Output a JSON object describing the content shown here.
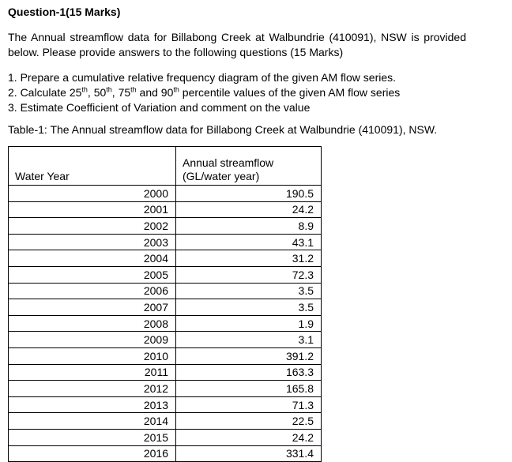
{
  "page": {
    "title": "Question-1(15 Marks)"
  },
  "intro": {
    "line1": "The Annual streamflow data for Billabong Creek at Walbundrie (410091), NSW is provided",
    "line2": "below. Please provide answers to the following questions (15 Marks)"
  },
  "questions": {
    "q1": "1. Prepare a cumulative relative frequency diagram of the given AM flow series.",
    "q2": {
      "a": "2. Calculate 25",
      "sup1": "th",
      "b": ", 50",
      "sup2": "th",
      "c": ", 75",
      "sup3": "th",
      "d": " and 90",
      "sup4": "th",
      "e": " percentile values of the given AM flow series"
    },
    "q3": "3. Estimate Coefficient of Variation and comment on the value"
  },
  "table": {
    "caption": "Table-1: The Annual streamflow data for Billabong Creek at Walbundrie (410091), NSW.",
    "headers": {
      "col1": "Water Year",
      "col2_line1": "Annual streamflow",
      "col2_line2": "(GL/water year)"
    },
    "rows": [
      {
        "year": "2000",
        "value": "190.5"
      },
      {
        "year": "2001",
        "value": "24.2"
      },
      {
        "year": "2002",
        "value": "8.9"
      },
      {
        "year": "2003",
        "value": "43.1"
      },
      {
        "year": "2004",
        "value": "31.2"
      },
      {
        "year": "2005",
        "value": "72.3"
      },
      {
        "year": "2006",
        "value": "3.5"
      },
      {
        "year": "2007",
        "value": "3.5"
      },
      {
        "year": "2008",
        "value": "1.9"
      },
      {
        "year": "2009",
        "value": "3.1"
      },
      {
        "year": "2010",
        "value": "391.2"
      },
      {
        "year": "2011",
        "value": "163.3"
      },
      {
        "year": "2012",
        "value": "165.8"
      },
      {
        "year": "2013",
        "value": "71.3"
      },
      {
        "year": "2014",
        "value": "22.5"
      },
      {
        "year": "2015",
        "value": "24.2"
      },
      {
        "year": "2016",
        "value": "331.4"
      }
    ]
  }
}
